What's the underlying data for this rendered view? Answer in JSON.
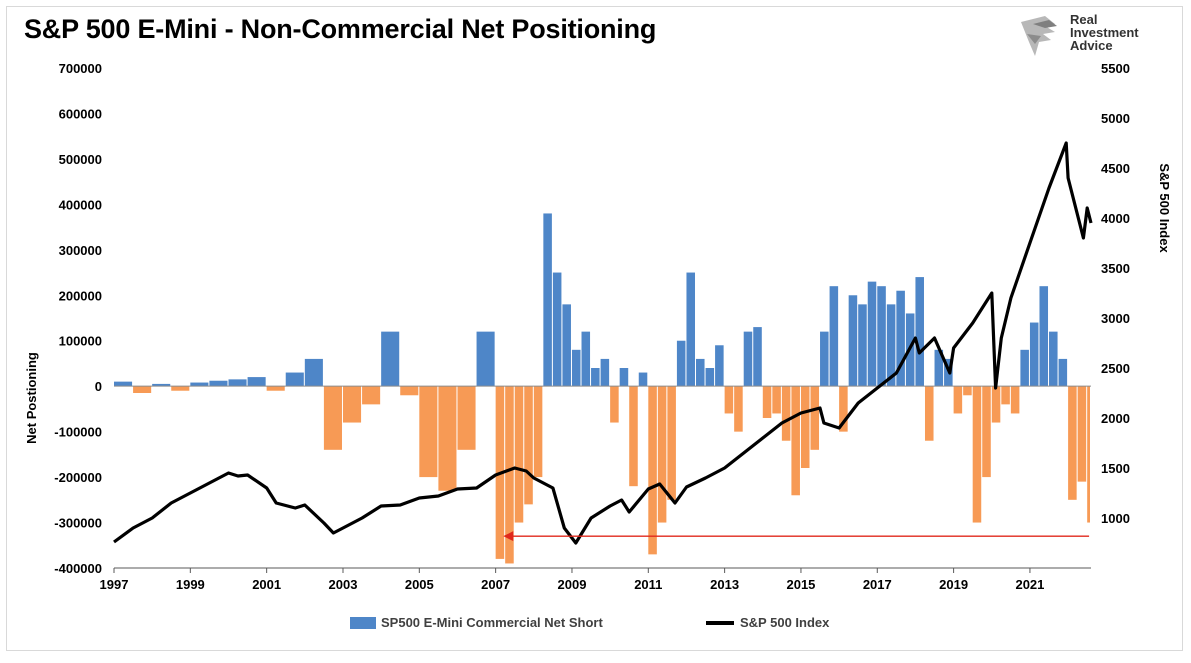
{
  "title": "S&P 500 E-Mini - Non-Commercial Net Positioning",
  "logo": {
    "line1": "Real",
    "line2": "Investment",
    "line3": "Advice"
  },
  "colors": {
    "positive_bar": "#4e86c8",
    "negative_bar": "#f79a55",
    "index_line": "#000000",
    "arrow": "#e0281c"
  },
  "chart_data": {
    "type": "bar",
    "left_axis": {
      "title": "Net Postioning",
      "range": [
        -400000,
        700000
      ],
      "ticks": [
        "700000",
        "600000",
        "500000",
        "400000",
        "300000",
        "200000",
        "100000",
        "0",
        "-100000",
        "-200000",
        "-300000",
        "-400000"
      ]
    },
    "right_axis": {
      "title": "S&P 500 Index",
      "range": [
        500,
        5500
      ],
      "ticks": [
        "5500",
        "5000",
        "4500",
        "4000",
        "3500",
        "3000",
        "2500",
        "2000",
        "1500",
        "1000"
      ]
    },
    "x_axis": {
      "range": [
        1997,
        2022.6
      ],
      "ticks": [
        "1997",
        "1999",
        "2001",
        "2003",
        "2005",
        "2007",
        "2009",
        "2011",
        "2013",
        "2015",
        "2017",
        "2019",
        "2021"
      ]
    },
    "legend": {
      "position": "bottom",
      "bar_series": "SP500 E-Mini Commercial Net Short",
      "line_series": "S&P 500 Index"
    },
    "annotations": [
      {
        "type": "arrow",
        "from": {
          "x": 2022.55,
          "y": -330000
        },
        "to": {
          "x": 2007.2,
          "y": -330000
        }
      }
    ],
    "series": [
      {
        "name": "SP500 E-Mini Commercial Net Short",
        "type": "bar",
        "x": [
          1997.0,
          1997.5,
          1998.0,
          1998.5,
          1999.0,
          1999.5,
          2000.0,
          2000.5,
          2001.0,
          2001.5,
          2002.0,
          2002.5,
          2003.0,
          2003.5,
          2004.0,
          2004.5,
          2005.0,
          2005.5,
          2006.0,
          2006.5,
          2007.0,
          2007.25,
          2007.5,
          2007.75,
          2008.0,
          2008.25,
          2008.5,
          2008.75,
          2009.0,
          2009.25,
          2009.5,
          2009.75,
          2010.0,
          2010.25,
          2010.5,
          2010.75,
          2011.0,
          2011.25,
          2011.5,
          2011.75,
          2012.0,
          2012.25,
          2012.5,
          2012.75,
          2013.0,
          2013.25,
          2013.5,
          2013.75,
          2014.0,
          2014.25,
          2014.5,
          2014.75,
          2015.0,
          2015.25,
          2015.5,
          2015.75,
          2016.0,
          2016.25,
          2016.5,
          2016.75,
          2017.0,
          2017.25,
          2017.5,
          2017.75,
          2018.0,
          2018.25,
          2018.5,
          2018.75,
          2019.0,
          2019.25,
          2019.5,
          2019.75,
          2020.0,
          2020.25,
          2020.5,
          2020.75,
          2021.0,
          2021.25,
          2021.5,
          2021.75,
          2022.0,
          2022.25,
          2022.5
        ],
        "values": [
          10000,
          -15000,
          5000,
          -10000,
          8000,
          12000,
          15000,
          20000,
          -10000,
          30000,
          60000,
          -140000,
          -80000,
          -40000,
          120000,
          -20000,
          -200000,
          -230000,
          -140000,
          120000,
          -380000,
          -390000,
          -300000,
          -260000,
          -200000,
          380000,
          250000,
          180000,
          80000,
          120000,
          40000,
          60000,
          -80000,
          40000,
          -220000,
          30000,
          -370000,
          -300000,
          -250000,
          100000,
          250000,
          60000,
          40000,
          90000,
          -60000,
          -100000,
          120000,
          130000,
          -70000,
          -60000,
          -120000,
          -240000,
          -180000,
          -140000,
          120000,
          220000,
          -100000,
          200000,
          180000,
          230000,
          220000,
          180000,
          210000,
          160000,
          240000,
          -120000,
          80000,
          60000,
          -60000,
          -20000,
          -300000,
          -200000,
          -80000,
          -40000,
          -60000,
          80000,
          140000,
          220000,
          120000,
          60000,
          -250000,
          -210000,
          -300000
        ]
      },
      {
        "name": "S&P 500 Index",
        "type": "line",
        "x": [
          1997.0,
          1997.5,
          1998.0,
          1998.5,
          1999.0,
          1999.5,
          2000.0,
          2000.25,
          2000.5,
          2001.0,
          2001.25,
          2001.75,
          2002.0,
          2002.5,
          2002.75,
          2003.0,
          2003.5,
          2004.0,
          2004.5,
          2005.0,
          2005.5,
          2006.0,
          2006.5,
          2007.0,
          2007.5,
          2007.8,
          2008.0,
          2008.5,
          2008.8,
          2009.1,
          2009.5,
          2010.0,
          2010.3,
          2010.5,
          2011.0,
          2011.3,
          2011.7,
          2012.0,
          2012.5,
          2013.0,
          2013.5,
          2014.0,
          2014.5,
          2015.0,
          2015.5,
          2015.6,
          2016.0,
          2016.5,
          2017.0,
          2017.5,
          2018.0,
          2018.1,
          2018.5,
          2018.9,
          2019.0,
          2019.5,
          2020.0,
          2020.1,
          2020.25,
          2020.5,
          2021.0,
          2021.5,
          2021.95,
          2022.0,
          2022.4,
          2022.5,
          2022.6
        ],
        "values": [
          760,
          900,
          1000,
          1150,
          1250,
          1350,
          1450,
          1420,
          1430,
          1300,
          1150,
          1100,
          1130,
          950,
          850,
          900,
          1000,
          1120,
          1130,
          1200,
          1220,
          1290,
          1300,
          1430,
          1500,
          1470,
          1400,
          1300,
          900,
          750,
          1000,
          1120,
          1180,
          1060,
          1290,
          1340,
          1150,
          1310,
          1400,
          1500,
          1650,
          1800,
          1950,
          2050,
          2100,
          1950,
          1900,
          2150,
          2300,
          2450,
          2800,
          2650,
          2800,
          2450,
          2700,
          2950,
          3250,
          2300,
          2800,
          3200,
          3750,
          4300,
          4750,
          4400,
          3800,
          4100,
          3950
        ]
      }
    ]
  }
}
